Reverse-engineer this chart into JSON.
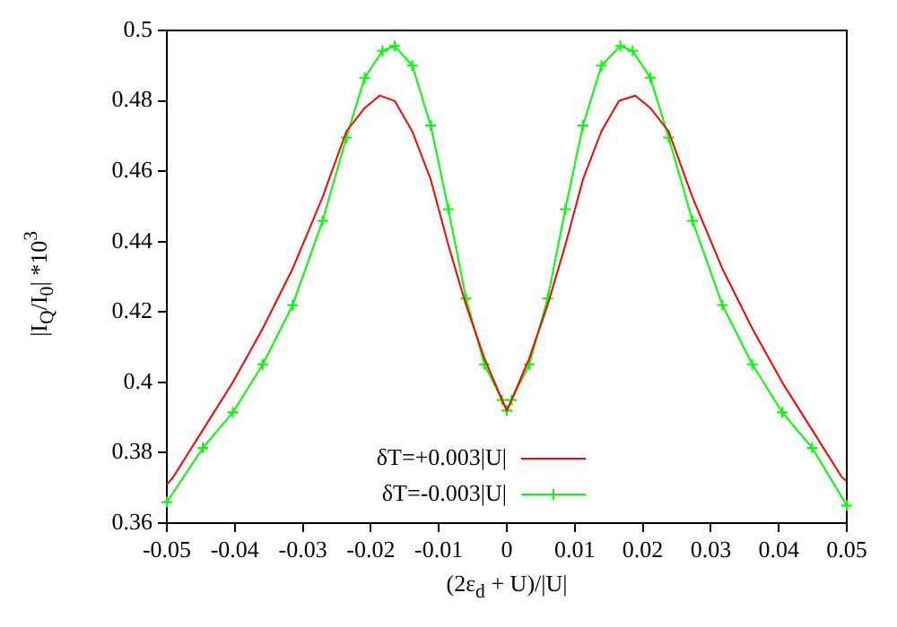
{
  "chart_data": {
    "type": "line",
    "xlabel": "(2ε$_{d}$ + U)/|U|",
    "ylabel": "|I$_{Q}$/I$_{0}$| *10$^{3}$",
    "xlim": [
      -0.05,
      0.05
    ],
    "xticks": [
      -0.05,
      -0.04,
      -0.03,
      -0.02,
      -0.01,
      0,
      0.01,
      0.02,
      0.03,
      0.04,
      0.05
    ],
    "ylim": [
      0.36,
      0.5
    ],
    "yticks": [
      0.36,
      0.38,
      0.4,
      0.42,
      0.44,
      0.46,
      0.48,
      0.5
    ],
    "grid": false,
    "legend": "bottom",
    "line_style": "solid",
    "series": [
      {
        "name": "δT=+0.003|U|",
        "color": "#ff0000",
        "marker": "none",
        "x": [
          -0.05,
          -0.0491,
          -0.0447,
          -0.0403,
          -0.0359,
          -0.0315,
          -0.0271,
          -0.0236,
          -0.0209,
          -0.0187,
          -0.0165,
          -0.0139,
          -0.0112,
          -0.0086,
          -0.006,
          -0.0033,
          -0.0007,
          0,
          0.0007,
          0.0033,
          0.006,
          0.0086,
          0.0112,
          0.0139,
          0.0165,
          0.0189,
          0.0211,
          0.0238,
          0.0273,
          0.0317,
          0.0361,
          0.0405,
          0.0449,
          0.0493,
          0.05
        ],
        "values": [
          0.371,
          0.373,
          0.3865,
          0.4,
          0.4153,
          0.4323,
          0.4526,
          0.4713,
          0.478,
          0.4815,
          0.48,
          0.4713,
          0.4577,
          0.439,
          0.422,
          0.4068,
          0.395,
          0.392,
          0.395,
          0.4068,
          0.422,
          0.439,
          0.4577,
          0.4713,
          0.48,
          0.4815,
          0.478,
          0.4713,
          0.4526,
          0.4323,
          0.4153,
          0.4,
          0.3865,
          0.373,
          0.372
        ]
      },
      {
        "name": "δT=-0.003|U|",
        "color": "#00ff00",
        "marker": "cross",
        "x": [
          -0.05,
          -0.0447,
          -0.0403,
          -0.0359,
          -0.0315,
          -0.0271,
          -0.0236,
          -0.0209,
          -0.0183,
          -0.0165,
          -0.0139,
          -0.0112,
          -0.0086,
          -0.006,
          -0.0033,
          -0.0007,
          0,
          0.0007,
          0.0033,
          0.006,
          0.0086,
          0.0112,
          0.0139,
          0.0167,
          0.0185,
          0.0211,
          0.0238,
          0.0273,
          0.0317,
          0.0361,
          0.0405,
          0.0449,
          0.05
        ],
        "values": [
          0.366,
          0.3814,
          0.3915,
          0.4051,
          0.422,
          0.4459,
          0.4696,
          0.4866,
          0.4942,
          0.4956,
          0.49,
          0.473,
          0.4492,
          0.4238,
          0.4051,
          0.395,
          0.392,
          0.395,
          0.4051,
          0.4238,
          0.4492,
          0.473,
          0.49,
          0.4956,
          0.4942,
          0.4866,
          0.4696,
          0.4459,
          0.422,
          0.4051,
          0.3915,
          0.3814,
          0.365
        ]
      }
    ]
  }
}
